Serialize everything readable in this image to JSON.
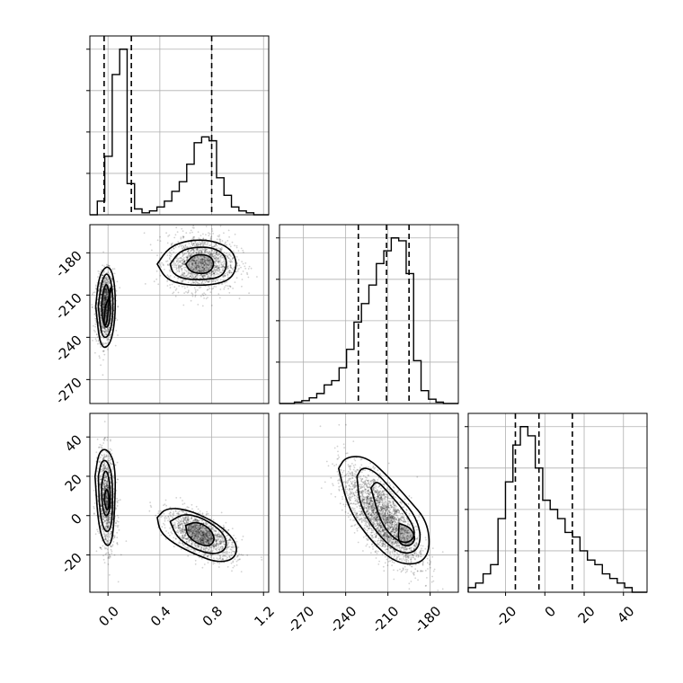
{
  "chart_data": {
    "type": "corner",
    "grid": true,
    "colors": {
      "line": "#000000",
      "grid": "#b0b0b0",
      "points": "#000000",
      "background": "#ffffff"
    },
    "parameters": [
      {
        "xticks": [
          "0.0",
          "0.4",
          "0.8",
          "1.2"
        ],
        "xticks_values": [
          0.0,
          0.4,
          0.8,
          1.2
        ],
        "range": [
          -0.14,
          1.24
        ]
      },
      {
        "xticks": [
          "-270",
          "-240",
          "-210",
          "-180"
        ],
        "xticks_values": [
          -270,
          -240,
          -210,
          -180
        ],
        "yticks": [
          "-180",
          "-210",
          "-240",
          "-270"
        ],
        "yticks_values": [
          -180,
          -210,
          -240,
          -270
        ],
        "range": [
          -287,
          -160
        ]
      },
      {
        "xticks": [
          "-20",
          "0",
          "20",
          "40"
        ],
        "xticks_values": [
          -20,
          0,
          20,
          40
        ],
        "yticks": [
          "40",
          "20",
          "0",
          "-20"
        ],
        "yticks_values": [
          40,
          20,
          0,
          -20
        ],
        "range": [
          -39,
          52
        ]
      }
    ],
    "histograms": [
      {
        "param": 0,
        "bin_range": [
          -0.14,
          1.24
        ],
        "counts": [
          0,
          7,
          30,
          72,
          85,
          16,
          3,
          1,
          2,
          4,
          7,
          12,
          17,
          26,
          37,
          40,
          38,
          19,
          10,
          4,
          2,
          1,
          0,
          0
        ],
        "quantiles": [
          -0.03,
          0.18,
          0.8
        ]
      },
      {
        "param": 1,
        "bin_range": [
          -287,
          -160
        ],
        "counts": [
          0,
          0,
          1,
          2,
          4,
          7,
          13,
          16,
          25,
          38,
          57,
          70,
          83,
          98,
          107,
          116,
          114,
          91,
          30,
          9,
          3,
          1,
          0,
          0
        ],
        "quantiles": [
          -231,
          -211,
          -195
        ]
      },
      {
        "param": 2,
        "bin_range": [
          -39,
          52
        ],
        "counts": [
          1,
          2,
          4,
          6,
          16,
          24,
          32,
          36,
          34,
          27,
          20,
          18,
          16,
          13,
          12,
          9,
          7,
          6,
          4,
          3,
          2,
          1,
          0,
          0
        ],
        "quantiles": [
          -15,
          -3,
          14
        ]
      }
    ],
    "pairs": [
      {
        "x_param": 0,
        "y_param": 1,
        "modes": [
          {
            "mean": [
              -0.02,
              -218
            ],
            "sd": [
              0.035,
              12
            ],
            "rho": 0.1,
            "weight": 0.45,
            "contours": [
              [
                [
                  -0.02,
                  -218
                ],
                [
                  0.03,
                  -206
                ],
                [
                  0.015,
                  -204
                ],
                [
                  -0.005,
                  -230
                ],
                [
                  -0.035,
                  -232
                ],
                [
                  -0.02,
                  -218
                ]
              ],
              [
                [
                  -0.095,
                  -218
                ],
                [
                  -0.07,
                  -196
                ],
                [
                  0.0,
                  -188
                ],
                [
                  0.05,
                  -198
                ],
                [
                  0.06,
                  -224
                ],
                [
                  0.02,
                  -246
                ],
                [
                  -0.06,
                  -248
                ],
                [
                  -0.095,
                  -218
                ]
              ],
              [
                [
                  -0.075,
                  -218
                ],
                [
                  -0.05,
                  -200
                ],
                [
                  -0.005,
                  -193
                ],
                [
                  0.035,
                  -204
                ],
                [
                  0.04,
                  -226
                ],
                [
                  0.005,
                  -240
                ],
                [
                  -0.05,
                  -240
                ],
                [
                  -0.075,
                  -218
                ]
              ],
              [
                [
                  -0.05,
                  -217
                ],
                [
                  -0.035,
                  -206
                ],
                [
                  -0.01,
                  -201
                ],
                [
                  0.015,
                  -210
                ],
                [
                  0.02,
                  -226
                ],
                [
                  -0.005,
                  -234
                ],
                [
                  -0.04,
                  -230
                ],
                [
                  -0.05,
                  -217
                ]
              ]
            ]
          },
          {
            "mean": [
              0.72,
              -187
            ],
            "sd": [
              0.13,
              10
            ],
            "rho": 0.0,
            "weight": 0.55,
            "contours": [
              [
                [
                  0.38,
                  -188
                ],
                [
                  0.47,
                  -176
                ],
                [
                  0.62,
                  -171
                ],
                [
                  0.8,
                  -171
                ],
                [
                  0.95,
                  -177
                ],
                [
                  1.0,
                  -188
                ],
                [
                  0.95,
                  -199
                ],
                [
                  0.8,
                  -203
                ],
                [
                  0.6,
                  -203
                ],
                [
                  0.45,
                  -199
                ],
                [
                  0.38,
                  -188
                ]
              ],
              [
                [
                  0.48,
                  -188
                ],
                [
                  0.55,
                  -179
                ],
                [
                  0.66,
                  -176
                ],
                [
                  0.8,
                  -176
                ],
                [
                  0.9,
                  -181
                ],
                [
                  0.92,
                  -189
                ],
                [
                  0.88,
                  -197
                ],
                [
                  0.76,
                  -199
                ],
                [
                  0.6,
                  -199
                ],
                [
                  0.5,
                  -195
                ],
                [
                  0.48,
                  -188
                ]
              ],
              [
                [
                  0.6,
                  -188
                ],
                [
                  0.65,
                  -182
                ],
                [
                  0.73,
                  -181
                ],
                [
                  0.8,
                  -183
                ],
                [
                  0.82,
                  -189
                ],
                [
                  0.78,
                  -194
                ],
                [
                  0.7,
                  -195
                ],
                [
                  0.63,
                  -193
                ],
                [
                  0.6,
                  -188
                ]
              ]
            ]
          }
        ]
      },
      {
        "x_param": 0,
        "y_param": 2,
        "modes": [
          {
            "mean": [
              -0.01,
              8
            ],
            "sd": [
              0.035,
              12
            ],
            "rho": -0.2,
            "weight": 0.45,
            "contours": [
              [
                [
                  -0.1,
                  20
                ],
                [
                  -0.07,
                  33
                ],
                [
                  0.0,
                  34
                ],
                [
                  0.06,
                  25
                ],
                [
                  0.05,
                  0
                ],
                [
                  0.03,
                  -14
                ],
                [
                  -0.02,
                  -16
                ],
                [
                  -0.075,
                  -5
                ],
                [
                  -0.1,
                  20
                ]
              ],
              [
                [
                  -0.075,
                  20
                ],
                [
                  -0.05,
                  28
                ],
                [
                  -0.005,
                  28
                ],
                [
                  0.035,
                  20
                ],
                [
                  0.035,
                  0
                ],
                [
                  0.015,
                  -8
                ],
                [
                  -0.03,
                  -8
                ],
                [
                  -0.065,
                  2
                ],
                [
                  -0.075,
                  20
                ]
              ],
              [
                [
                  -0.05,
                  15
                ],
                [
                  -0.03,
                  23
                ],
                [
                  0.0,
                  22
                ],
                [
                  0.02,
                  12
                ],
                [
                  0.015,
                  2
                ],
                [
                  -0.02,
                  -1
                ],
                [
                  -0.045,
                  5
                ],
                [
                  -0.05,
                  15
                ]
              ],
              [
                [
                  -0.03,
                  8
                ],
                [
                  -0.015,
                  14
                ],
                [
                  0.005,
                  12
                ],
                [
                  0.01,
                  5
                ],
                [
                  -0.01,
                  2
                ],
                [
                  -0.03,
                  8
                ]
              ]
            ]
          },
          {
            "mean": [
              0.72,
              -10
            ],
            "sd": [
              0.13,
              6
            ],
            "rho": -0.6,
            "weight": 0.55,
            "contours": [
              [
                [
                  0.38,
                  -1
                ],
                [
                  0.45,
                  4
                ],
                [
                  0.62,
                  3
                ],
                [
                  0.85,
                  -4
                ],
                [
                  1.0,
                  -14
                ],
                [
                  0.98,
                  -22
                ],
                [
                  0.85,
                  -24
                ],
                [
                  0.68,
                  -20
                ],
                [
                  0.5,
                  -14
                ],
                [
                  0.4,
                  -8
                ],
                [
                  0.38,
                  -1
                ]
              ],
              [
                [
                  0.48,
                  -3
                ],
                [
                  0.58,
                  1
                ],
                [
                  0.73,
                  -1
                ],
                [
                  0.9,
                  -9
                ],
                [
                  0.92,
                  -17
                ],
                [
                  0.82,
                  -20
                ],
                [
                  0.66,
                  -17
                ],
                [
                  0.53,
                  -11
                ],
                [
                  0.48,
                  -3
                ]
              ],
              [
                [
                  0.6,
                  -5
                ],
                [
                  0.68,
                  -3
                ],
                [
                  0.78,
                  -6
                ],
                [
                  0.83,
                  -12
                ],
                [
                  0.78,
                  -16
                ],
                [
                  0.68,
                  -14
                ],
                [
                  0.61,
                  -10
                ],
                [
                  0.6,
                  -5
                ]
              ]
            ]
          }
        ]
      },
      {
        "x_param": 1,
        "y_param": 2,
        "modes": [
          {
            "mean": [
              -214,
              -1
            ],
            "sd": [
              13,
              12
            ],
            "rho": -0.7,
            "weight": 1.0,
            "contours": [
              [
                [
                  -245,
                  24
                ],
                [
                  -240,
                  30
                ],
                [
                  -225,
                  30
                ],
                [
                  -210,
                  20
                ],
                [
                  -195,
                  8
                ],
                [
                  -182,
                  -3
                ],
                [
                  -180,
                  -18
                ],
                [
                  -188,
                  -25
                ],
                [
                  -205,
                  -24
                ],
                [
                  -222,
                  -13
                ],
                [
                  -238,
                  3
                ],
                [
                  -245,
                  24
                ]
              ],
              [
                [
                  -232,
                  20
                ],
                [
                  -228,
                  25
                ],
                [
                  -218,
                  22
                ],
                [
                  -206,
                  12
                ],
                [
                  -192,
                  2
                ],
                [
                  -186,
                  -10
                ],
                [
                  -190,
                  -19
                ],
                [
                  -203,
                  -19
                ],
                [
                  -218,
                  -9
                ],
                [
                  -230,
                  5
                ],
                [
                  -232,
                  20
                ]
              ],
              [
                [
                  -222,
                  14
                ],
                [
                  -218,
                  18
                ],
                [
                  -210,
                  12
                ],
                [
                  -198,
                  2
                ],
                [
                  -190,
                  -8
                ],
                [
                  -194,
                  -14
                ],
                [
                  -204,
                  -13
                ],
                [
                  -215,
                  -4
                ],
                [
                  -222,
                  14
                ]
              ],
              [
                [
                  -202,
                  -4
                ],
                [
                  -194,
                  -6
                ],
                [
                  -190,
                  -12
                ],
                [
                  -195,
                  -16
                ],
                [
                  -203,
                  -14
                ],
                [
                  -202,
                  -4
                ]
              ]
            ]
          }
        ]
      }
    ]
  }
}
